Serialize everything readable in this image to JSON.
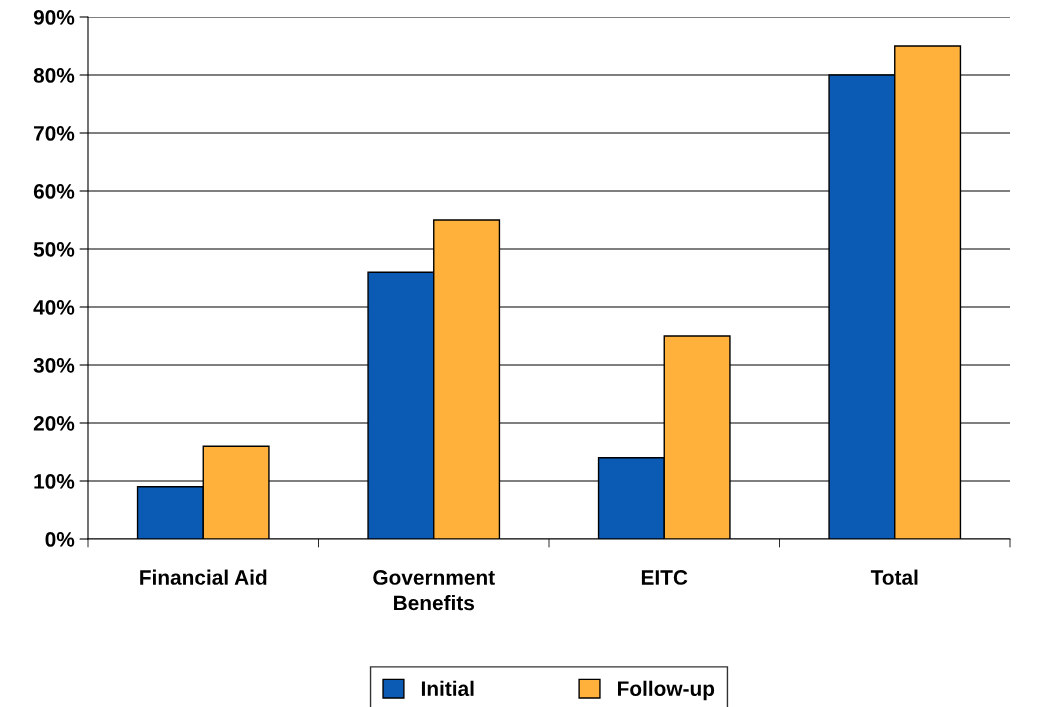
{
  "chart_data": {
    "type": "bar",
    "categories": [
      "Financial Aid",
      "Government\nBenefits",
      "EITC",
      "Total"
    ],
    "series": [
      {
        "name": "Initial",
        "color": "#0b5bb5",
        "values": [
          9,
          46,
          14,
          80
        ]
      },
      {
        "name": "Follow-up",
        "color": "#ffb13b",
        "values": [
          16,
          55,
          35,
          85
        ]
      }
    ],
    "ylim": [
      0,
      90
    ],
    "yticks": [
      {
        "value": 0,
        "label": "0%"
      },
      {
        "value": 10,
        "label": "10%"
      },
      {
        "value": 20,
        "label": "20%"
      },
      {
        "value": 30,
        "label": "30%"
      },
      {
        "value": 40,
        "label": "40%"
      },
      {
        "value": 50,
        "label": "50%"
      },
      {
        "value": 60,
        "label": "60%"
      },
      {
        "value": 70,
        "label": "70%"
      },
      {
        "value": 80,
        "label": "80%"
      },
      {
        "value": 90,
        "label": "90%"
      }
    ],
    "grid": "y",
    "legend": "bottom"
  }
}
